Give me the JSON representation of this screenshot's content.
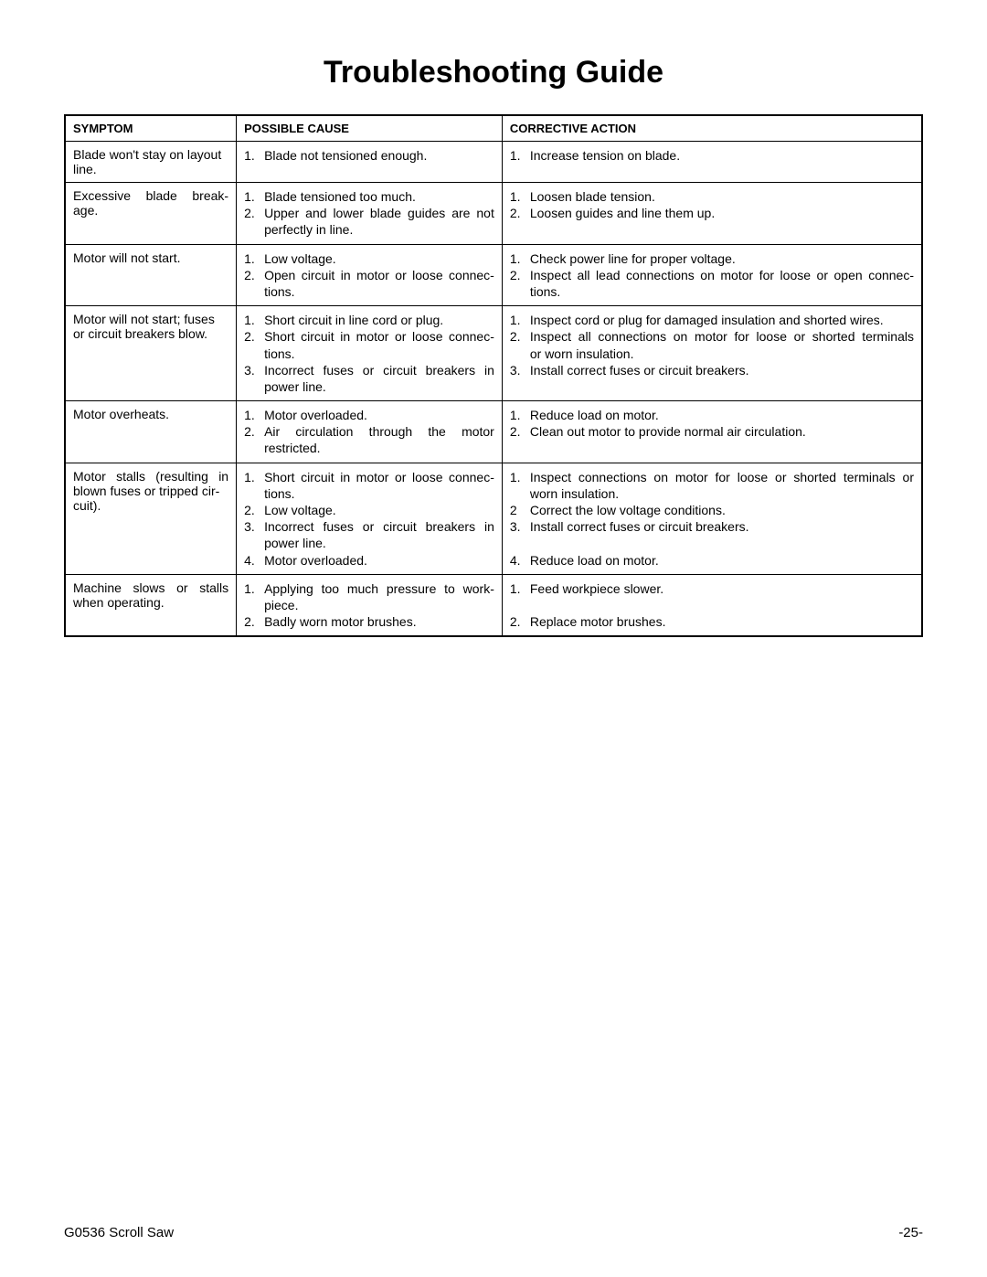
{
  "title": "Troubleshooting Guide",
  "headers": {
    "symptom": "SYMPTOM",
    "cause": "POSSIBLE CAUSE",
    "action": "CORRECTIVE ACTION"
  },
  "rows": [
    {
      "symptom_lines": [
        "Blade won't stay on layout",
        "line."
      ],
      "symptom_justify": [
        false,
        false
      ],
      "causes": [
        {
          "n": "1.",
          "t": "Blade not tensioned enough."
        }
      ],
      "actions": [
        {
          "n": "1.",
          "t": "Increase tension on blade."
        }
      ]
    },
    {
      "symptom_lines": [
        "Excessive blade break-",
        "age."
      ],
      "symptom_justify": [
        true,
        false
      ],
      "causes": [
        {
          "n": "1.",
          "t": "Blade tensioned too much."
        },
        {
          "n": "2.",
          "t": "Upper and lower blade guides are not",
          "just": "full"
        },
        {
          "n": "",
          "t": "perfectly in line."
        }
      ],
      "actions": [
        {
          "n": "1.",
          "t": "Loosen blade tension."
        },
        {
          "n": "2.",
          "t": "Loosen guides and line them up."
        }
      ]
    },
    {
      "symptom_lines": [
        "Motor will not start."
      ],
      "symptom_justify": [
        false
      ],
      "causes": [
        {
          "n": "1.",
          "t": "Low voltage."
        },
        {
          "n": "2.",
          "t": "Open circuit in motor or loose connec-",
          "just": "full"
        },
        {
          "n": "",
          "t": "tions."
        }
      ],
      "actions": [
        {
          "n": "1.",
          "t": "Check power line for proper voltage."
        },
        {
          "n": "2.",
          "t": "Inspect all lead connections on motor for loose or open connec-",
          "just": "full"
        },
        {
          "n": "",
          "t": "tions."
        }
      ]
    },
    {
      "symptom_lines": [
        "Motor will not start; fuses",
        "or circuit breakers blow."
      ],
      "symptom_justify": [
        false,
        false
      ],
      "causes": [
        {
          "n": "1.",
          "t": "Short circuit in line cord or plug."
        },
        {
          "n": "2.",
          "t": "Short circuit in motor or loose connec-",
          "just": "full"
        },
        {
          "n": "",
          "t": "tions."
        },
        {
          "n": "3.",
          "t": "Incorrect fuses or circuit breakers in",
          "just": "full"
        },
        {
          "n": "",
          "t": "power line."
        }
      ],
      "actions": [
        {
          "n": "1.",
          "t": "Inspect cord or plug for damaged insulation and shorted wires."
        },
        {
          "n": "2.",
          "t": "Inspect all connections on motor for loose or shorted terminals",
          "just": "full"
        },
        {
          "n": "",
          "t": "or worn insulation."
        },
        {
          "n": "3.",
          "t": "Install correct fuses or circuit breakers."
        }
      ]
    },
    {
      "symptom_lines": [
        "Motor overheats."
      ],
      "symptom_justify": [
        false
      ],
      "causes": [
        {
          "n": "1.",
          "t": "Motor overloaded."
        },
        {
          "n": "2.",
          "t": "Air circulation through the motor",
          "just": "full"
        },
        {
          "n": "",
          "t": "restricted."
        }
      ],
      "actions": [
        {
          "n": "1.",
          "t": "Reduce load on motor."
        },
        {
          "n": "2.",
          "t": "Clean out motor to provide normal air circulation."
        }
      ]
    },
    {
      "symptom_lines": [
        "Motor stalls (resulting in",
        "blown fuses or tripped cir-",
        "cuit)."
      ],
      "symptom_justify": [
        true,
        false,
        false
      ],
      "causes": [
        {
          "n": "1.",
          "t": "Short circuit in motor or loose connec-",
          "just": "full"
        },
        {
          "n": "",
          "t": "tions."
        },
        {
          "n": "2.",
          "t": "Low voltage."
        },
        {
          "n": "3.",
          "t": "Incorrect fuses or circuit breakers in",
          "just": "full"
        },
        {
          "n": "",
          "t": "power line."
        },
        {
          "n": "4.",
          "t": "Motor overloaded."
        }
      ],
      "actions": [
        {
          "n": "1.",
          "t": "Inspect connections on motor for loose or shorted terminals or",
          "just": "full"
        },
        {
          "n": "",
          "t": "worn insulation."
        },
        {
          "n": "2",
          "t": "Correct the low voltage conditions."
        },
        {
          "n": "3.",
          "t": "Install correct fuses or circuit breakers."
        },
        {
          "n": "",
          "t": " "
        },
        {
          "n": "4.",
          "t": "Reduce load on motor."
        }
      ]
    },
    {
      "symptom_lines": [
        "Machine slows or stalls",
        "when operating."
      ],
      "symptom_justify": [
        true,
        false
      ],
      "causes": [
        {
          "n": "1.",
          "t": "Applying too much pressure to work-",
          "just": "full"
        },
        {
          "n": "",
          "t": "piece."
        },
        {
          "n": "2.",
          "t": "Badly worn motor brushes."
        }
      ],
      "actions": [
        {
          "n": "1.",
          "t": "Feed workpiece slower."
        },
        {
          "n": "",
          "t": " "
        },
        {
          "n": "2.",
          "t": "Replace motor brushes."
        }
      ]
    }
  ],
  "footer": {
    "left": "G0536 Scroll Saw",
    "right": "-25-"
  }
}
